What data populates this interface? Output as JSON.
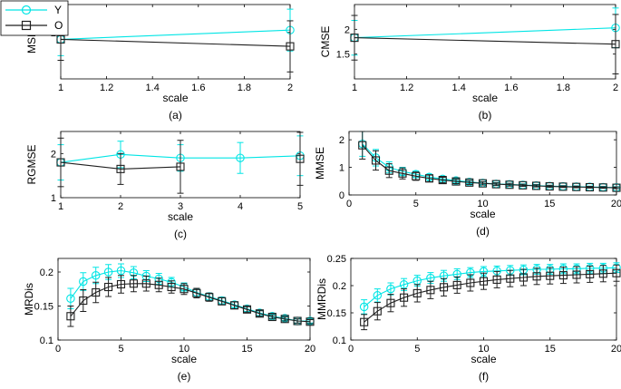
{
  "legend": {
    "entries": [
      "Y",
      "O"
    ],
    "placement": "top-left"
  },
  "series_colors": {
    "Y": "#00e5e5",
    "O": "#1f1f1f"
  },
  "chart_data": [
    {
      "id": "a",
      "type": "line",
      "caption": "(a)",
      "xlabel": "scale",
      "ylabel": "MSE",
      "xlim": [
        1,
        2
      ],
      "ylim": [
        1,
        2.6
      ],
      "xticks": [
        1,
        1.2,
        1.4,
        1.6,
        1.8,
        2
      ],
      "xtick_labels": [
        "1",
        "1.2",
        "1.4",
        "1.6",
        "1.8",
        "2"
      ],
      "yticks": [
        2
      ],
      "ytick_labels": [
        "2"
      ],
      "series": [
        {
          "name": "Y",
          "x": [
            1,
            2
          ],
          "values": [
            1.85,
            2.05
          ],
          "err": [
            0.35,
            0.45
          ]
        },
        {
          "name": "O",
          "x": [
            1,
            2
          ],
          "values": [
            1.85,
            1.7
          ],
          "err": [
            0.45,
            0.55
          ]
        }
      ]
    },
    {
      "id": "b",
      "type": "line",
      "caption": "(b)",
      "xlabel": "scale",
      "ylabel": "CMSE",
      "xlim": [
        1,
        2
      ],
      "ylim": [
        1,
        2.5
      ],
      "xticks": [
        1,
        1.2,
        1.4,
        1.6,
        1.8,
        2
      ],
      "xtick_labels": [
        "1",
        "1.2",
        "1.4",
        "1.6",
        "1.8",
        "2"
      ],
      "yticks": [
        1.5,
        2
      ],
      "ytick_labels": [
        "1.5",
        "2"
      ],
      "series": [
        {
          "name": "Y",
          "x": [
            1,
            2
          ],
          "values": [
            1.83,
            2.03
          ],
          "err": [
            0.35,
            0.4
          ]
        },
        {
          "name": "O",
          "x": [
            1,
            2
          ],
          "values": [
            1.83,
            1.7
          ],
          "err": [
            0.45,
            0.6
          ]
        }
      ]
    },
    {
      "id": "c",
      "type": "line",
      "caption": "(c)",
      "xlabel": "scale",
      "ylabel": "RGMSE",
      "xlim": [
        1,
        5
      ],
      "ylim": [
        1,
        2.5
      ],
      "xticks": [
        1,
        2,
        3,
        4,
        5
      ],
      "xtick_labels": [
        "1",
        "2",
        "3",
        "4",
        "5"
      ],
      "yticks": [
        1,
        2
      ],
      "ytick_labels": [
        "1",
        "2"
      ],
      "series": [
        {
          "name": "Y",
          "x": [
            1,
            2,
            3,
            4,
            5
          ],
          "values": [
            1.8,
            1.98,
            1.9,
            1.9,
            1.95
          ],
          "err": [
            0.4,
            0.3,
            0.3,
            0.35,
            0.45
          ]
        },
        {
          "name": "O",
          "x": [
            1,
            2,
            3
          ],
          "values": [
            1.8,
            1.65,
            1.7
          ],
          "err": [
            0.55,
            0.35,
            0.6
          ]
        },
        {
          "name": "O",
          "x": [
            5
          ],
          "values": [
            1.88
          ],
          "err": [
            0.6
          ]
        }
      ]
    },
    {
      "id": "d",
      "type": "line",
      "caption": "(d)",
      "xlabel": "scale",
      "ylabel": "MMSE",
      "xlim": [
        0,
        20
      ],
      "ylim": [
        0,
        2.3
      ],
      "xticks": [
        0,
        5,
        10,
        15,
        20
      ],
      "xtick_labels": [
        "0",
        "5",
        "10",
        "15",
        "20"
      ],
      "yticks": [
        0,
        1,
        2
      ],
      "ytick_labels": [
        "0",
        "1",
        "2"
      ],
      "series": [
        {
          "name": "Y",
          "x": [
            1,
            2,
            3,
            4,
            5,
            6,
            7,
            8,
            9,
            10,
            11,
            12,
            13,
            14,
            15,
            16,
            17,
            18,
            19,
            20
          ],
          "values": [
            1.85,
            1.35,
            1.0,
            0.85,
            0.75,
            0.65,
            0.58,
            0.52,
            0.47,
            0.43,
            0.4,
            0.38,
            0.36,
            0.34,
            0.32,
            0.31,
            0.3,
            0.29,
            0.28,
            0.27
          ],
          "err": [
            0.45,
            0.3,
            0.2,
            0.15,
            0.12,
            0.1,
            0.08,
            0.07,
            0.06,
            0.05,
            0.05,
            0.04,
            0.04,
            0.04,
            0.03,
            0.03,
            0.03,
            0.03,
            0.03,
            0.03
          ]
        },
        {
          "name": "O",
          "x": [
            1,
            2,
            3,
            4,
            5,
            6,
            7,
            8,
            9,
            10,
            11,
            12,
            13,
            14,
            15,
            16,
            17,
            18,
            19,
            20
          ],
          "values": [
            1.8,
            1.25,
            0.88,
            0.78,
            0.68,
            0.6,
            0.54,
            0.49,
            0.45,
            0.42,
            0.39,
            0.37,
            0.35,
            0.33,
            0.31,
            0.3,
            0.29,
            0.28,
            0.27,
            0.26
          ],
          "err": [
            0.5,
            0.35,
            0.25,
            0.2,
            0.15,
            0.12,
            0.1,
            0.08,
            0.07,
            0.06,
            0.05,
            0.05,
            0.04,
            0.04,
            0.04,
            0.03,
            0.03,
            0.03,
            0.03,
            0.03
          ]
        }
      ]
    },
    {
      "id": "e",
      "type": "line",
      "caption": "(e)",
      "xlabel": "scale",
      "ylabel": "MRDis",
      "xlim": [
        0,
        20
      ],
      "ylim": [
        0.1,
        0.22
      ],
      "xticks": [
        0,
        5,
        10,
        15,
        20
      ],
      "xtick_labels": [
        "0",
        "5",
        "10",
        "15",
        "20"
      ],
      "yticks": [
        0.1,
        0.15,
        0.2
      ],
      "ytick_labels": [
        "0.1",
        "0.15",
        "0.2"
      ],
      "series": [
        {
          "name": "Y",
          "x": [
            1,
            2,
            3,
            4,
            5,
            6,
            7,
            8,
            9,
            10,
            11,
            12,
            13,
            14,
            15,
            16,
            17,
            18,
            19,
            20
          ],
          "values": [
            0.161,
            0.186,
            0.195,
            0.2,
            0.202,
            0.199,
            0.194,
            0.19,
            0.185,
            0.178,
            0.17,
            0.164,
            0.158,
            0.152,
            0.146,
            0.14,
            0.135,
            0.132,
            0.128,
            0.128
          ],
          "err": [
            0.015,
            0.013,
            0.012,
            0.011,
            0.01,
            0.009,
            0.008,
            0.008,
            0.007,
            0.006,
            0.006,
            0.005,
            0.005,
            0.004,
            0.004,
            0.004,
            0.003,
            0.003,
            0.003,
            0.003
          ]
        },
        {
          "name": "O",
          "x": [
            1,
            2,
            3,
            4,
            5,
            6,
            7,
            8,
            9,
            10,
            11,
            12,
            13,
            14,
            15,
            16,
            17,
            18,
            19,
            20
          ],
          "values": [
            0.135,
            0.158,
            0.17,
            0.178,
            0.182,
            0.183,
            0.183,
            0.181,
            0.178,
            0.175,
            0.169,
            0.163,
            0.157,
            0.151,
            0.145,
            0.139,
            0.134,
            0.131,
            0.128,
            0.127
          ],
          "err": [
            0.015,
            0.016,
            0.015,
            0.014,
            0.013,
            0.012,
            0.011,
            0.01,
            0.009,
            0.008,
            0.007,
            0.006,
            0.005,
            0.005,
            0.004,
            0.004,
            0.003,
            0.003,
            0.003,
            0.003
          ]
        }
      ]
    },
    {
      "id": "f",
      "type": "line",
      "caption": "(f)",
      "xlabel": "scale",
      "ylabel": "MMRDis",
      "xlim": [
        0,
        20
      ],
      "ylim": [
        0.1,
        0.25
      ],
      "xticks": [
        0,
        5,
        10,
        15,
        20
      ],
      "xtick_labels": [
        "0",
        "5",
        "10",
        "15",
        "20"
      ],
      "yticks": [
        0.1,
        0.15,
        0.2,
        0.25
      ],
      "ytick_labels": [
        "0.1",
        "0.15",
        "0.2",
        "0.25"
      ],
      "series": [
        {
          "name": "Y",
          "x": [
            1,
            2,
            3,
            4,
            5,
            6,
            7,
            8,
            9,
            10,
            11,
            12,
            13,
            14,
            15,
            16,
            17,
            18,
            19,
            20
          ],
          "values": [
            0.161,
            0.182,
            0.194,
            0.202,
            0.209,
            0.214,
            0.218,
            0.221,
            0.224,
            0.226,
            0.227,
            0.228,
            0.229,
            0.23,
            0.23,
            0.231,
            0.231,
            0.232,
            0.232,
            0.233
          ],
          "err": [
            0.013,
            0.012,
            0.011,
            0.011,
            0.01,
            0.01,
            0.01,
            0.01,
            0.009,
            0.009,
            0.009,
            0.009,
            0.009,
            0.009,
            0.009,
            0.009,
            0.009,
            0.009,
            0.009,
            0.009
          ]
        },
        {
          "name": "O",
          "x": [
            1,
            2,
            3,
            4,
            5,
            6,
            7,
            8,
            9,
            10,
            11,
            12,
            13,
            14,
            15,
            16,
            17,
            18,
            19,
            20
          ],
          "values": [
            0.133,
            0.153,
            0.168,
            0.178,
            0.186,
            0.192,
            0.197,
            0.201,
            0.205,
            0.208,
            0.211,
            0.213,
            0.215,
            0.217,
            0.218,
            0.219,
            0.22,
            0.221,
            0.222,
            0.223
          ],
          "err": [
            0.014,
            0.016,
            0.016,
            0.016,
            0.016,
            0.016,
            0.016,
            0.015,
            0.015,
            0.015,
            0.015,
            0.015,
            0.015,
            0.015,
            0.015,
            0.015,
            0.015,
            0.015,
            0.015,
            0.015
          ]
        }
      ]
    }
  ]
}
